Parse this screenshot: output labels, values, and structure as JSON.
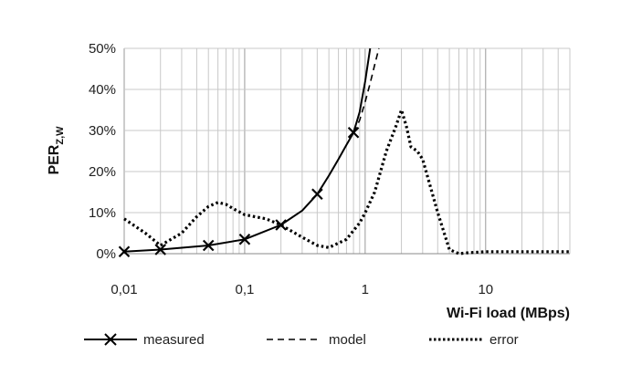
{
  "chart_data": {
    "type": "line",
    "xscale": "log",
    "xlim": [
      0.01,
      50
    ],
    "ylim": [
      0,
      50
    ],
    "x_ticks": [
      "0,01",
      "0,1",
      "1",
      "10"
    ],
    "y_ticks": [
      "0%",
      "10%",
      "20%",
      "30%",
      "40%",
      "50%"
    ],
    "xlabel": "Wi-Fi load (MBps)",
    "ylabel": {
      "main": "PER",
      "sub": "Z,W"
    },
    "grid": true,
    "legend_position": "bottom",
    "series": [
      {
        "name": "measured",
        "style": "solid-x",
        "color": "#000000",
        "x": [
          0.01,
          0.02,
          0.05,
          0.1,
          0.2,
          0.4,
          0.8
        ],
        "y": [
          0.5,
          1.0,
          2.0,
          3.5,
          7.0,
          14.5,
          29.5
        ],
        "line_x": [
          0.01,
          0.02,
          0.05,
          0.1,
          0.2,
          0.3,
          0.4,
          0.5,
          0.6,
          0.7,
          0.8,
          0.9,
          1.0,
          1.1
        ],
        "line_y": [
          0.5,
          1.0,
          2.0,
          3.5,
          7.0,
          10.5,
          14.5,
          19.0,
          23.0,
          26.5,
          29.5,
          34.5,
          42.0,
          50.0
        ]
      },
      {
        "name": "model",
        "style": "dashed",
        "color": "#000000",
        "x": [
          0.8,
          0.9,
          1.0,
          1.1,
          1.2,
          1.3
        ],
        "y": [
          29.5,
          32.5,
          37.0,
          41.5,
          46.0,
          50.0
        ]
      },
      {
        "name": "error",
        "style": "dotted",
        "color": "#000000",
        "x": [
          0.01,
          0.015,
          0.02,
          0.03,
          0.04,
          0.05,
          0.06,
          0.07,
          0.08,
          0.1,
          0.15,
          0.2,
          0.3,
          0.4,
          0.5,
          0.7,
          0.9,
          1.0,
          1.2,
          1.5,
          1.8,
          2.0,
          2.2,
          2.4,
          2.7,
          3.0,
          4.0,
          5.0,
          6.0,
          7.0,
          10.0,
          20.0,
          50.0
        ],
        "y": [
          8.5,
          5.0,
          2.0,
          5.0,
          9.0,
          11.5,
          12.5,
          12.0,
          11.0,
          9.5,
          8.5,
          7.0,
          4.0,
          2.0,
          1.5,
          3.5,
          7.5,
          10.0,
          15.0,
          25.0,
          31.0,
          35.0,
          31.0,
          26.0,
          25.0,
          23.0,
          10.0,
          1.0,
          0.0,
          0.2,
          0.5,
          0.5,
          0.5
        ]
      }
    ]
  }
}
